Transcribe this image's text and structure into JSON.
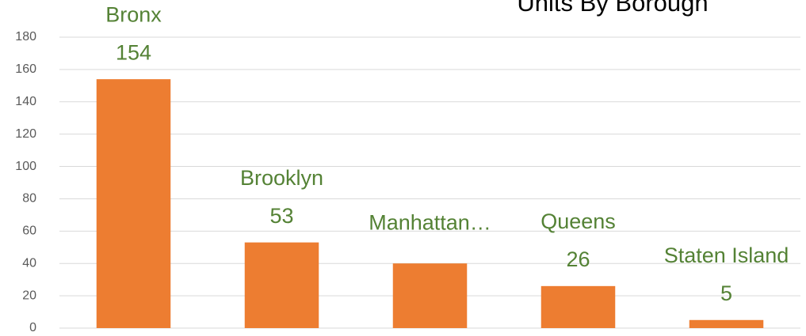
{
  "chart_data": {
    "type": "bar",
    "title": "Units By Borough",
    "categories": [
      "Bronx",
      "Brooklyn",
      "Manhattan…",
      "Queens",
      "Staten Island"
    ],
    "values": [
      154,
      53,
      40,
      26,
      5
    ],
    "value_labels": [
      "154",
      "53",
      null,
      "26",
      "5"
    ],
    "color": "#ed7d31",
    "label_color": "#548235",
    "ylim": [
      0,
      180
    ],
    "yticks": [
      0,
      20,
      40,
      60,
      80,
      100,
      120,
      140,
      160,
      180
    ],
    "grid": true
  }
}
